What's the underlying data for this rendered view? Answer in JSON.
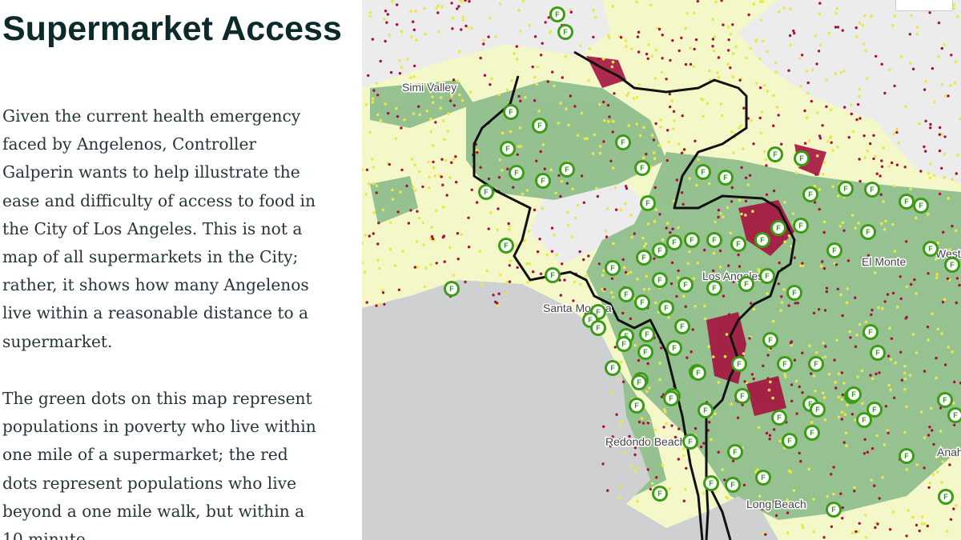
{
  "title": "Supermarket Access",
  "paragraphs": [
    "Given the current health emergency faced by Angelenos, Controller Galperin wants to help illustrate the ease and difficulty of access to food in the City of Los Angeles. This is not a map of all supermarkets in the City; rather, it shows how many Angelenos live within a reasonable distance to a supermarket.",
    "The green dots on this map represent populations in poverty who live within one mile of a supermarket; the red dots represent populations who live beyond a one mile walk, but within a 10 minute"
  ],
  "map": {
    "place_labels": [
      "Simi Valley",
      "Santa Monica",
      "Los Angeles",
      "El Monte",
      "Redondo Beach",
      "Long Beach",
      "West Covina",
      "Anaheim"
    ],
    "marker_letter": "F",
    "colors": {
      "land": "#f4f7c8",
      "ocean": "#cfd0d2",
      "low_income_area": "#8fbf8d",
      "green_dots": "#e8e84a",
      "red_dots": "#a5123f",
      "marker": "#3c9c15",
      "city_boundary": "#111111"
    }
  }
}
